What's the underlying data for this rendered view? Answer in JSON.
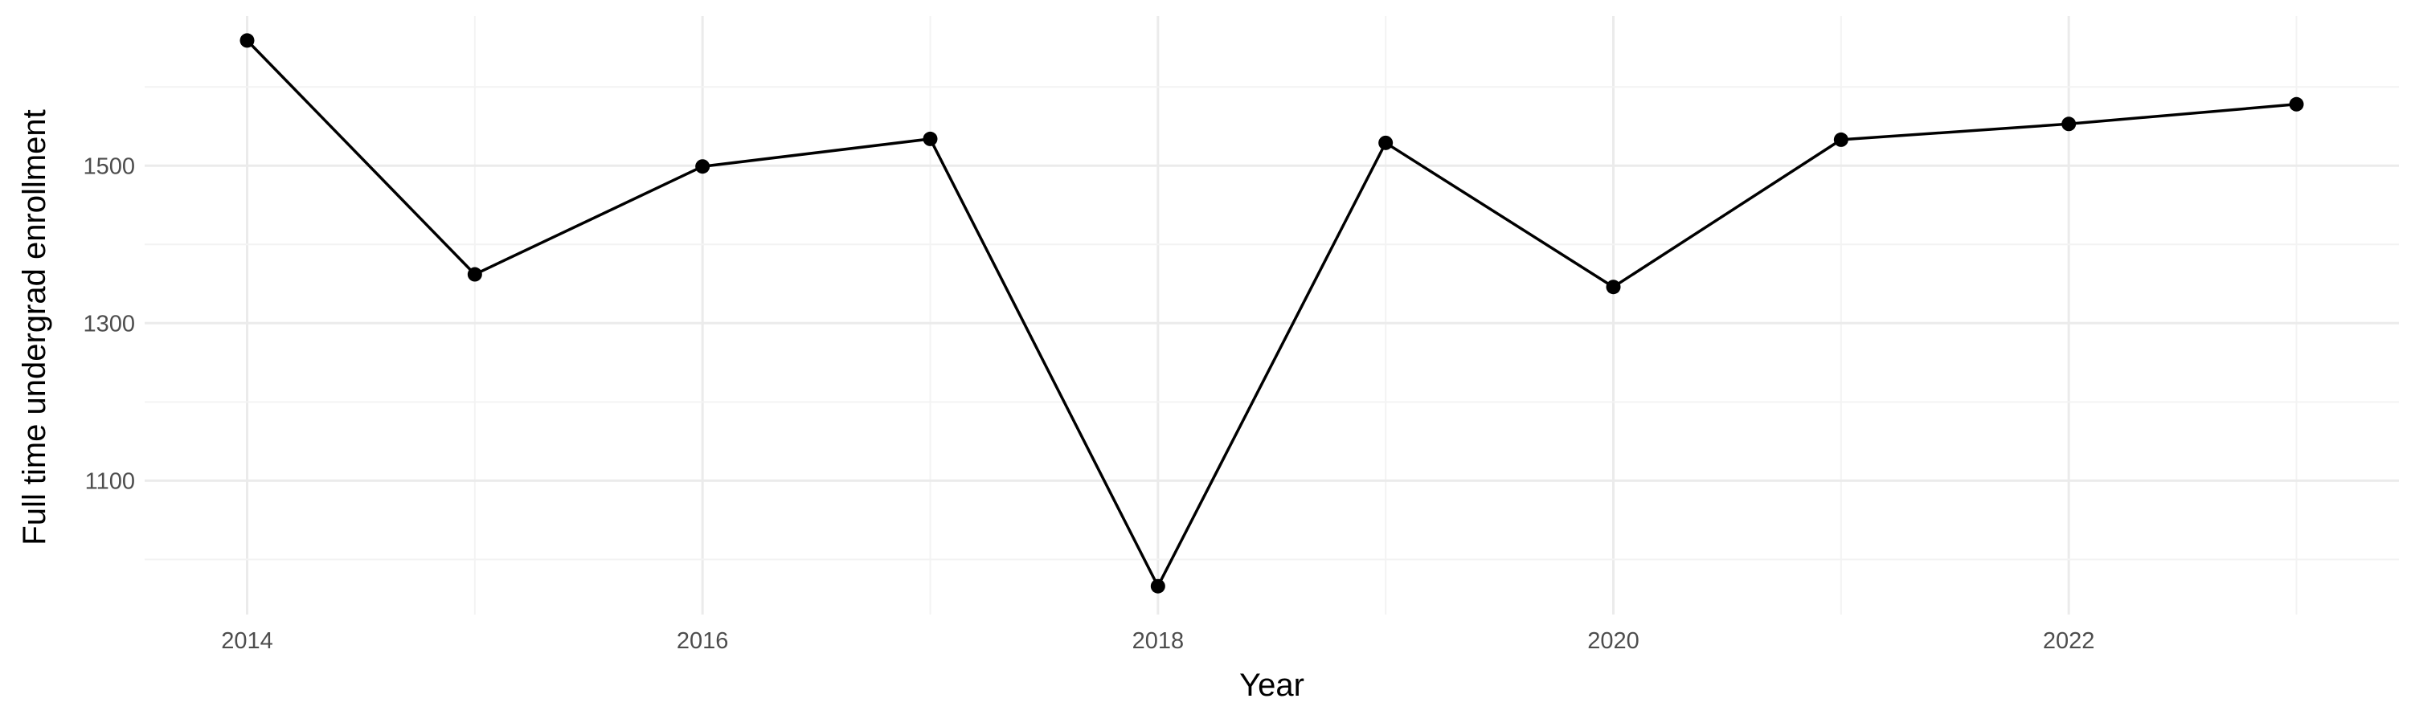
{
  "chart_data": {
    "type": "line",
    "title": "",
    "xlabel": "Year",
    "ylabel": "Full time undergrad enrollment",
    "x": [
      2014,
      2015,
      2016,
      2017,
      2018,
      2019,
      2020,
      2021,
      2022,
      2023
    ],
    "series": [
      {
        "values": [
          1659,
          1362,
          1499,
          1534,
          966,
          1529,
          1346,
          1533,
          1553,
          1578
        ]
      }
    ],
    "xlim": [
      2013.55,
      2023.45
    ],
    "ylim": [
      930,
      1690
    ],
    "x_ticks": [
      2014,
      2016,
      2018,
      2020,
      2022
    ],
    "x_tick_labels": [
      "2014",
      "2016",
      "2018",
      "2020",
      "2022"
    ],
    "y_ticks": [
      1100,
      1300,
      1500
    ],
    "y_tick_labels": [
      "1100",
      "1300",
      "1500"
    ],
    "grid": true,
    "legend": "none",
    "line_color": "#000000",
    "grid_color": "#ebebeb"
  }
}
